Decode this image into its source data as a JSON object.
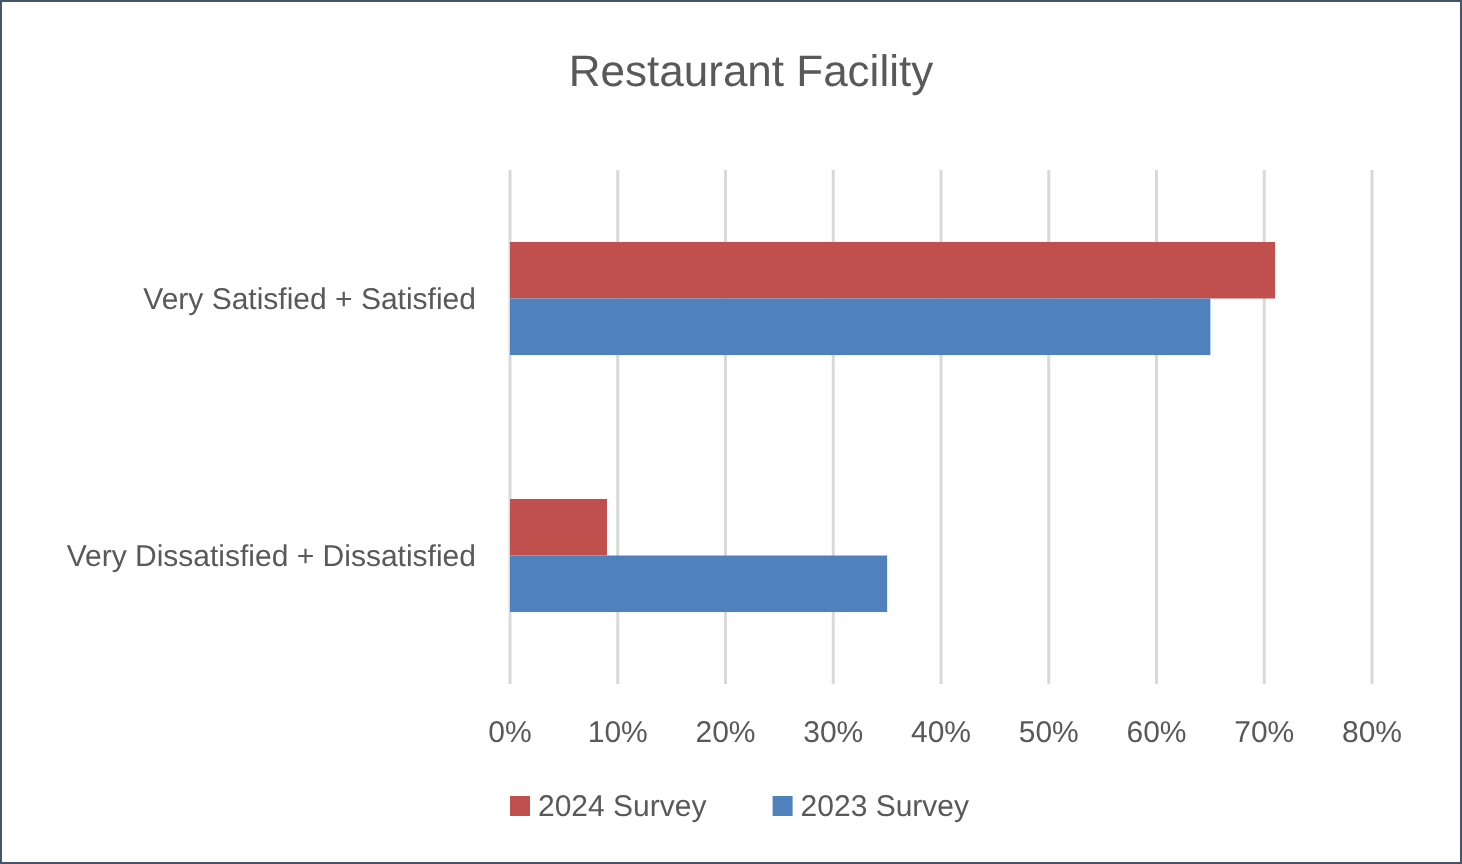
{
  "chart_data": {
    "type": "bar",
    "orientation": "horizontal",
    "title": "Restaurant Facility",
    "categories": [
      "Very Satisfied + Satisfied",
      "Very Dissatisfied + Dissatisfied"
    ],
    "series": [
      {
        "name": "2024 Survey",
        "color": "#c0504d",
        "values": [
          71,
          9
        ]
      },
      {
        "name": "2023 Survey",
        "color": "#4f81bd",
        "values": [
          65,
          35
        ]
      }
    ],
    "xlim": [
      0,
      80
    ],
    "xticks": [
      {
        "value": 0,
        "label": "0%"
      },
      {
        "value": 10,
        "label": "10%"
      },
      {
        "value": 20,
        "label": "20%"
      },
      {
        "value": 30,
        "label": "30%"
      },
      {
        "value": 40,
        "label": "40%"
      },
      {
        "value": 50,
        "label": "50%"
      },
      {
        "value": 60,
        "label": "60%"
      },
      {
        "value": 70,
        "label": "70%"
      },
      {
        "value": 80,
        "label": "80%"
      }
    ],
    "grid": "x",
    "legend": "bottom"
  }
}
